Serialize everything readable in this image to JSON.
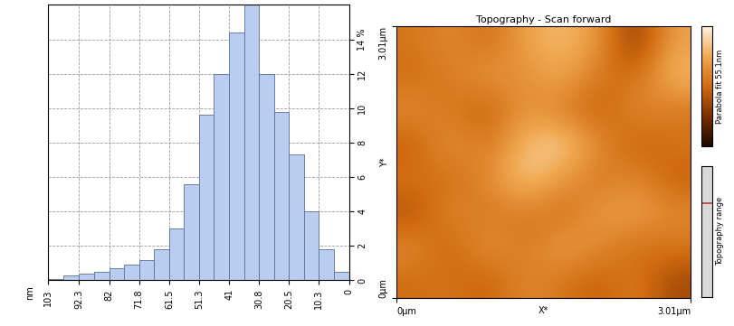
{
  "chart_data": [
    {
      "type": "histogram",
      "xlabel": "nm",
      "bins": [
        103,
        97.6,
        92.3,
        87.2,
        82,
        76.9,
        71.8,
        66.7,
        61.5,
        56.4,
        51.3,
        46.2,
        41,
        35.9,
        30.8,
        25.7,
        20.5,
        15.4,
        10.3,
        5.2,
        0
      ],
      "values": [
        0.1,
        0.3,
        0.4,
        0.5,
        0.7,
        0.9,
        1.2,
        1.8,
        3.0,
        5.6,
        9.6,
        12.0,
        14.4,
        16.0,
        12.0,
        9.8,
        7.3,
        4.0,
        1.8,
        0.5
      ],
      "color": "#b8cdf0",
      "xlim": [
        103,
        0
      ],
      "xticks": [
        103,
        92.3,
        82,
        71.8,
        61.5,
        51.3,
        41,
        30.8,
        20.5,
        10.3,
        0
      ],
      "ylim": [
        0,
        16
      ],
      "yticks": [
        0,
        2,
        4,
        6,
        8,
        10,
        12,
        {
          "value": 14,
          "label": "14 %"
        }
      ],
      "grid": true
    },
    {
      "type": "heatmap",
      "title": "Topography - Scan forward",
      "xlabel": "X*",
      "ylabel": "Y*",
      "xlim": [
        0,
        3.01
      ],
      "ylim": [
        0,
        3.01
      ],
      "xticks": [
        {
          "value": 0,
          "label": "0µm"
        },
        {
          "value": 3.01,
          "label": "3.01µm"
        }
      ],
      "yticks": [
        {
          "value": 0,
          "label": "0µm"
        },
        {
          "value": 3.01,
          "label": "3.01µm"
        }
      ],
      "cells": [
        [
          30,
          35,
          28,
          40,
          45,
          38,
          15,
          40
        ],
        [
          28,
          32,
          38,
          35,
          42,
          30,
          28,
          45
        ],
        [
          35,
          30,
          25,
          38,
          32,
          25,
          35,
          30
        ],
        [
          25,
          38,
          30,
          45,
          50,
          35,
          25,
          30
        ],
        [
          30,
          28,
          35,
          48,
          38,
          30,
          35,
          25
        ],
        [
          22,
          35,
          30,
          32,
          28,
          38,
          40,
          35
        ],
        [
          35,
          25,
          38,
          30,
          40,
          35,
          28,
          30
        ],
        [
          28,
          30,
          25,
          35,
          30,
          25,
          32,
          20
        ]
      ],
      "colorbar_range": [
        0,
        55.1
      ],
      "colorbar_label": "Parabola fit 55.1nm",
      "range_label": "Topography range"
    }
  ]
}
